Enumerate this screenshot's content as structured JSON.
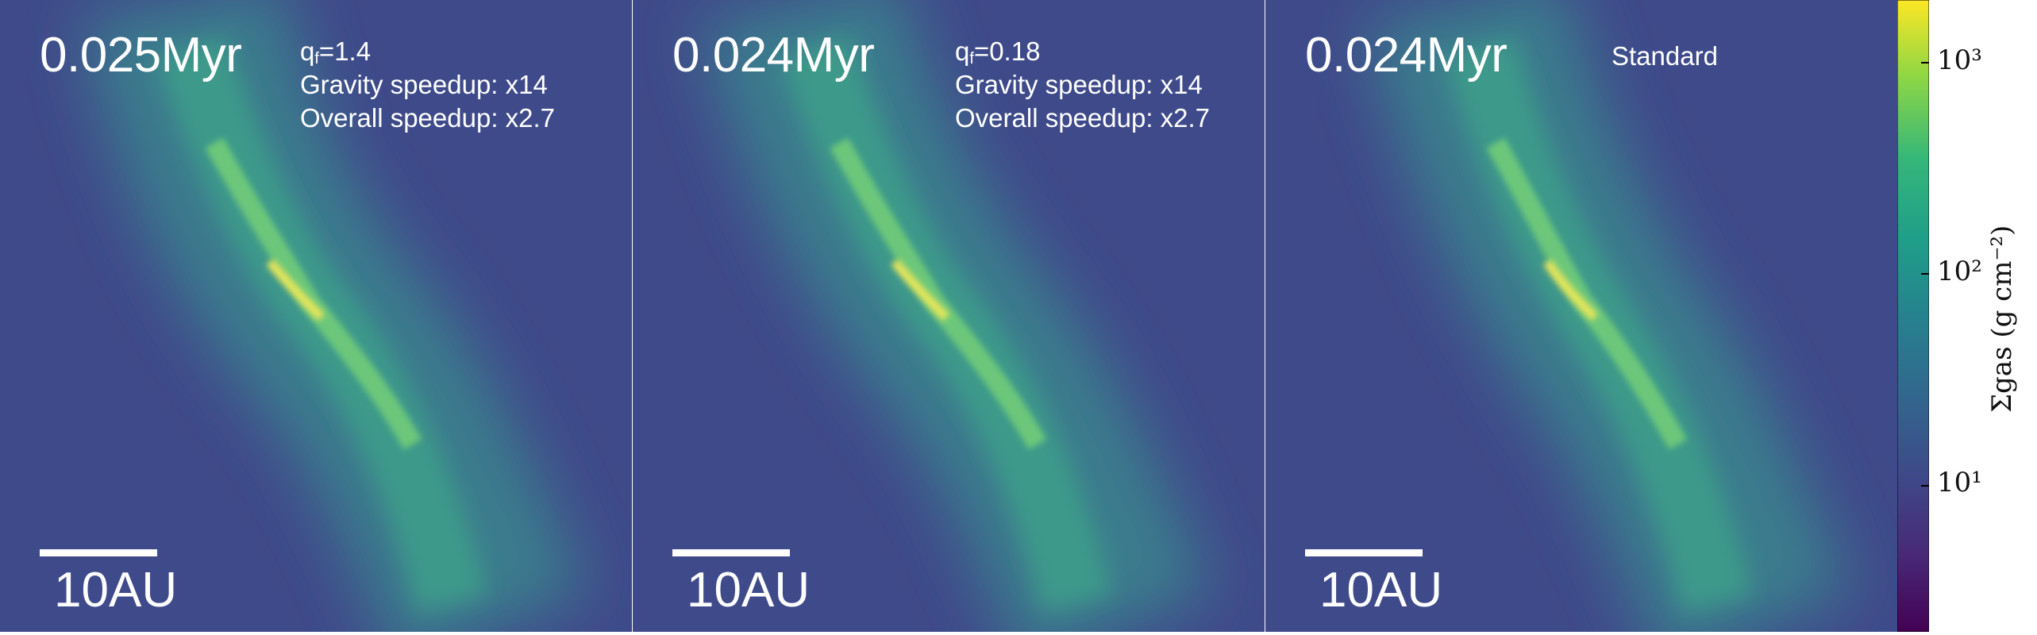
{
  "panels": [
    {
      "time": "0.025Myr",
      "qf_prefix": "q",
      "qf_sub": "f",
      "qf_value": "=1.4",
      "line2": "Gravity speedup: x14",
      "line3": "Overall speedup: x2.7",
      "scale_label": "10AU"
    },
    {
      "time": "0.024Myr",
      "qf_prefix": "q",
      "qf_sub": "f",
      "qf_value": "=0.18",
      "line2": "Gravity speedup: x14",
      "line3": "Overall speedup: x2.7",
      "scale_label": "10AU"
    },
    {
      "time": "0.024Myr",
      "standard_label": "Standard",
      "scale_label": "10AU"
    }
  ],
  "colorbar": {
    "colormap": "viridis",
    "scale": "log",
    "tick_labels": [
      "10³",
      "10²",
      "10¹"
    ],
    "title": "Σgas (g cm⁻²)"
  },
  "colors": {
    "background_disk": "#3f4a8a",
    "filament_core": "#e8e85a",
    "filament_mid": "#4fb487",
    "text": "#ffffff"
  }
}
